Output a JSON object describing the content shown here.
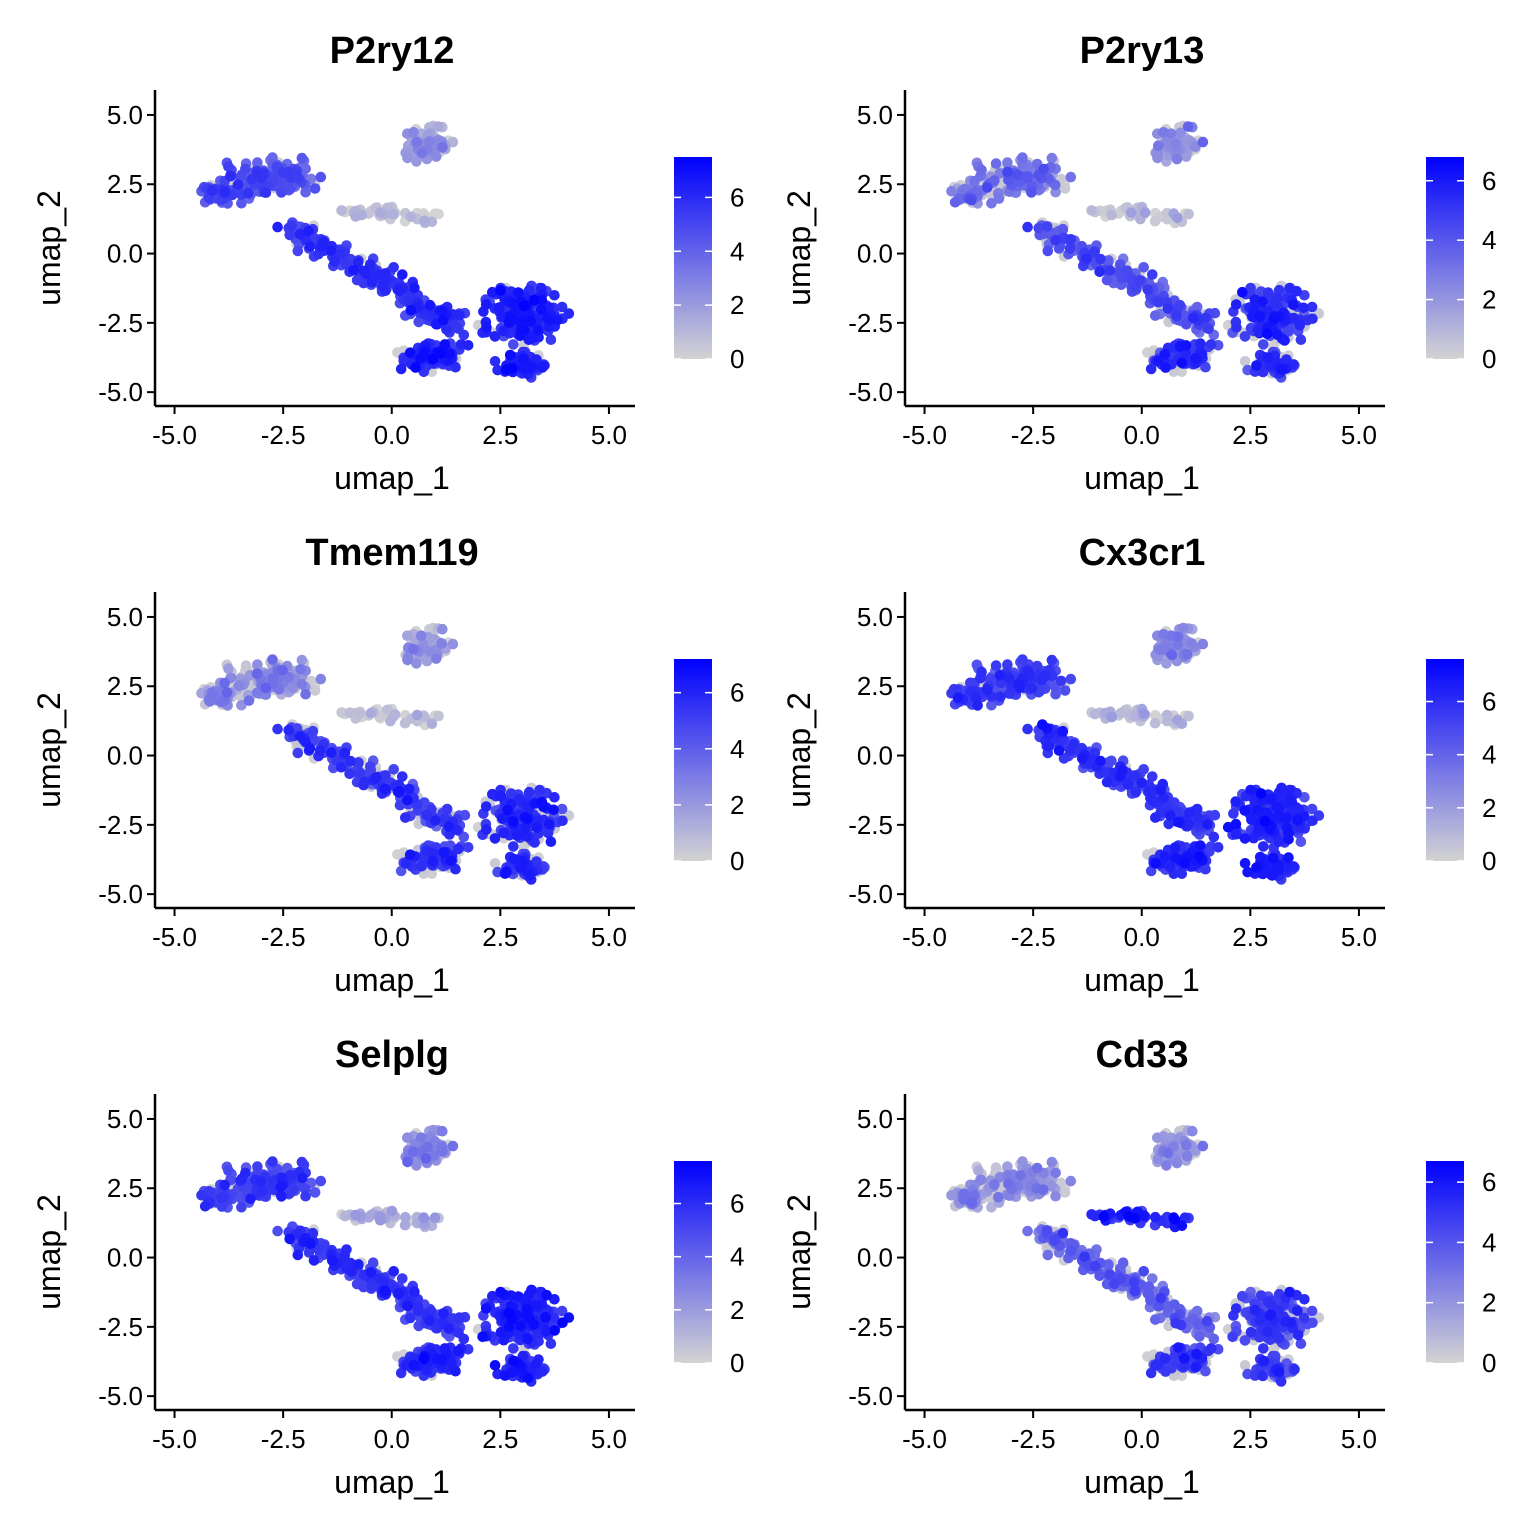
{
  "figure": {
    "type": "umap_feature_plot_grid"
  },
  "colors": {
    "low": "#d3d3d3",
    "high": "#0000ff",
    "axis": "#000000",
    "background": "#ffffff"
  },
  "chart_data": [
    {
      "type": "scatter",
      "title": "P2ry12",
      "xlabel": "umap_1",
      "ylabel": "umap_2",
      "xlim": [
        -5.0,
        5.0
      ],
      "ylim": [
        -5.0,
        5.0
      ],
      "xticks": [
        "-5.0",
        "-2.5",
        "0.0",
        "2.5",
        "5.0"
      ],
      "yticks": [
        "-5.0",
        "-2.5",
        "0.0",
        "2.5",
        "5.0"
      ],
      "grid": false,
      "legend": "right",
      "color_scale": {
        "min": 0,
        "max": 7.5,
        "ticks": [
          0,
          2,
          4,
          6
        ]
      },
      "expression": {
        "left_lobe": 4.5,
        "bridge": 5.5,
        "right_blob": 6.0,
        "top_blob": 2.0,
        "stream": 0.5,
        "gray_fraction": 0.12
      }
    },
    {
      "type": "scatter",
      "title": "P2ry13",
      "xlabel": "umap_1",
      "ylabel": "umap_2",
      "xlim": [
        -5.0,
        5.0
      ],
      "ylim": [
        -5.0,
        5.0
      ],
      "xticks": [
        "-5.0",
        "-2.5",
        "0.0",
        "2.5",
        "5.0"
      ],
      "yticks": [
        "-5.0",
        "-2.5",
        "0.0",
        "2.5",
        "5.0"
      ],
      "grid": false,
      "legend": "right",
      "color_scale": {
        "min": 0,
        "max": 6.8,
        "ticks": [
          0,
          2,
          4,
          6
        ]
      },
      "expression": {
        "left_lobe": 3.0,
        "bridge": 4.0,
        "right_blob": 5.0,
        "top_blob": 2.0,
        "stream": 0.3,
        "gray_fraction": 0.3
      }
    },
    {
      "type": "scatter",
      "title": "Tmem119",
      "xlabel": "umap_1",
      "ylabel": "umap_2",
      "xlim": [
        -5.0,
        5.0
      ],
      "ylim": [
        -5.0,
        5.0
      ],
      "xticks": [
        "-5.0",
        "-2.5",
        "0.0",
        "2.5",
        "5.0"
      ],
      "yticks": [
        "-5.0",
        "-2.5",
        "0.0",
        "2.5",
        "5.0"
      ],
      "grid": false,
      "legend": "right",
      "color_scale": {
        "min": 0,
        "max": 7.2,
        "ticks": [
          0,
          2,
          4,
          6
        ]
      },
      "expression": {
        "left_lobe": 2.5,
        "bridge": 5.0,
        "right_blob": 5.5,
        "top_blob": 2.0,
        "stream": 0.3,
        "gray_fraction": 0.35
      }
    },
    {
      "type": "scatter",
      "title": "Cx3cr1",
      "xlabel": "umap_1",
      "ylabel": "umap_2",
      "xlim": [
        -5.0,
        5.0
      ],
      "ylim": [
        -5.0,
        5.0
      ],
      "xticks": [
        "-5.0",
        "-2.5",
        "0.0",
        "2.5",
        "5.0"
      ],
      "yticks": [
        "-5.0",
        "-2.5",
        "0.0",
        "2.5",
        "5.0"
      ],
      "grid": false,
      "legend": "right",
      "color_scale": {
        "min": 0,
        "max": 7.6,
        "ticks": [
          0,
          2,
          4,
          6
        ]
      },
      "expression": {
        "left_lobe": 5.0,
        "bridge": 5.5,
        "right_blob": 6.0,
        "top_blob": 2.5,
        "stream": 0.8,
        "gray_fraction": 0.08
      }
    },
    {
      "type": "scatter",
      "title": "Selplg",
      "xlabel": "umap_1",
      "ylabel": "umap_2",
      "xlim": [
        -5.0,
        5.0
      ],
      "ylim": [
        -5.0,
        5.0
      ],
      "xticks": [
        "-5.0",
        "-2.5",
        "0.0",
        "2.5",
        "5.0"
      ],
      "yticks": [
        "-5.0",
        "-2.5",
        "0.0",
        "2.5",
        "5.0"
      ],
      "grid": false,
      "legend": "right",
      "color_scale": {
        "min": 0,
        "max": 7.6,
        "ticks": [
          0,
          2,
          4,
          6
        ]
      },
      "expression": {
        "left_lobe": 5.0,
        "bridge": 5.5,
        "right_blob": 6.0,
        "top_blob": 2.5,
        "stream": 1.2,
        "gray_fraction": 0.1
      }
    },
    {
      "type": "scatter",
      "title": "Cd33",
      "xlabel": "umap_1",
      "ylabel": "umap_2",
      "xlim": [
        -5.0,
        5.0
      ],
      "ylim": [
        -5.0,
        5.0
      ],
      "xticks": [
        "-5.0",
        "-2.5",
        "0.0",
        "2.5",
        "5.0"
      ],
      "yticks": [
        "-5.0",
        "-2.5",
        "0.0",
        "2.5",
        "5.0"
      ],
      "grid": false,
      "legend": "right",
      "color_scale": {
        "min": 0,
        "max": 6.7,
        "ticks": [
          0,
          2,
          4,
          6
        ]
      },
      "expression": {
        "left_lobe": 2.0,
        "bridge": 3.5,
        "right_blob": 4.5,
        "top_blob": 2.0,
        "stream": 5.5,
        "gray_fraction": 0.35
      }
    }
  ]
}
